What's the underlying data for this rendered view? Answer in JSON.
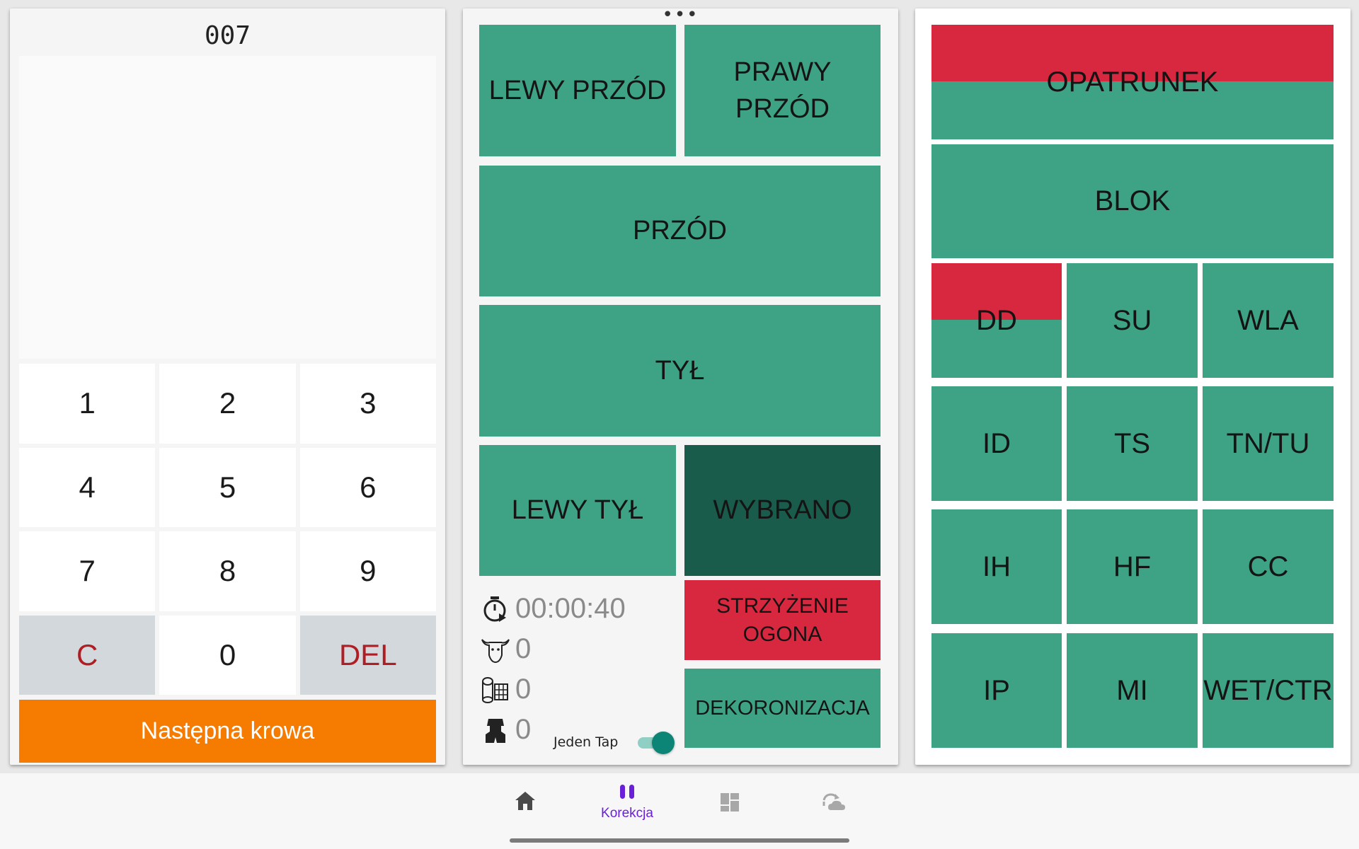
{
  "left_panel": {
    "cow_number": "007",
    "keypad": [
      "1",
      "2",
      "3",
      "4",
      "5",
      "6",
      "7",
      "8",
      "9",
      "C",
      "0",
      "DEL"
    ],
    "next_button": "Następna krowa"
  },
  "middle_panel": {
    "menu_dots": "•••",
    "lewy_przod": "LEWY PRZÓD",
    "prawy_przod": "PRAWY PRZÓD",
    "przod": "PRZÓD",
    "tyl": "TYŁ",
    "lewy_tyl": "LEWY TYŁ",
    "wybrano": "WYBRANO",
    "strzyzenie": "STRZYŻENIE OGONA",
    "dekoronizacja": "DEKORONIZACJA",
    "timer": "00:00:40",
    "cow_count": "0",
    "roll_count": "0",
    "hoof_count": "0",
    "toggle_label": "Jeden Tap",
    "toggle_on": true
  },
  "right_panel": {
    "opatrunek": "OPATRUNEK",
    "blok": "BLOK",
    "codes": [
      "DD",
      "SU",
      "WLA",
      "ID",
      "TS",
      "TN/TU",
      "IH",
      "HF",
      "CC",
      "IP",
      "MI",
      "WET/CTR"
    ]
  },
  "bottom_nav": {
    "items": [
      {
        "icon": "home-icon",
        "label": ""
      },
      {
        "icon": "pause-icon",
        "label": "Korekcja"
      },
      {
        "icon": "dashboard-icon",
        "label": ""
      },
      {
        "icon": "sync-cloud-icon",
        "label": ""
      }
    ]
  },
  "colors": {
    "tile_green": "#3ea384",
    "tile_dark": "#1a5c4b",
    "alert_red": "#d8283f",
    "accent_orange": "#f57c00",
    "nav_active": "#6a1fd8"
  }
}
